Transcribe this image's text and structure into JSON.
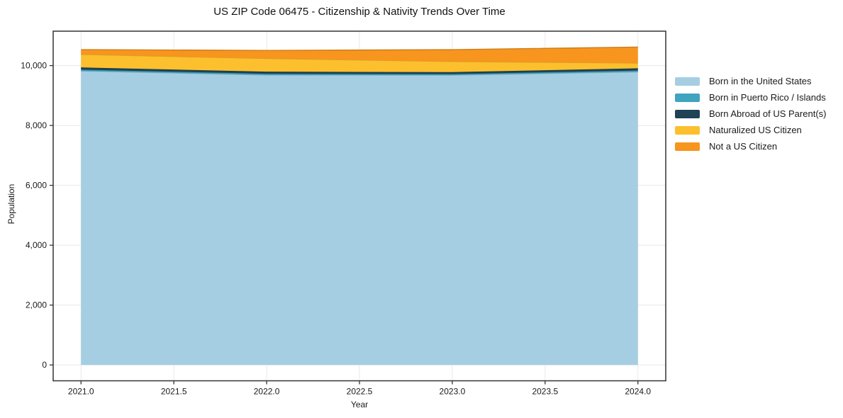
{
  "title": "US ZIP Code 06475 - Citizenship & Nativity Trends Over Time",
  "chart_data": {
    "type": "area",
    "stacked": true,
    "title": "US ZIP Code 06475 - Citizenship & Nativity Trends Over Time",
    "xlabel": "Year",
    "ylabel": "Population",
    "x": [
      2021,
      2022,
      2023,
      2024
    ],
    "series": [
      {
        "name": "Born in the United States",
        "color": "#A6CEE3",
        "values": [
          9820,
          9685,
          9680,
          9790
        ]
      },
      {
        "name": "Born in Puerto Rico / Islands",
        "color": "#3FA4C0",
        "values": [
          45,
          42,
          38,
          45
        ]
      },
      {
        "name": "Born Abroad of US Parent(s)",
        "color": "#1F4254",
        "values": [
          74,
          70,
          64,
          74
        ]
      },
      {
        "name": "Naturalized US Citizen",
        "color": "#FCC02E",
        "values": [
          435,
          440,
          355,
          175
        ]
      },
      {
        "name": "Not a US Citizen",
        "color": "#F7951E",
        "values": [
          160,
          270,
          395,
          535
        ]
      }
    ],
    "xlim": [
      2020.85,
      2024.15
    ],
    "ylim": [
      -530,
      11150
    ],
    "xticks": [
      {
        "v": 2021.0,
        "label": "2021.0"
      },
      {
        "v": 2021.5,
        "label": "2021.5"
      },
      {
        "v": 2022.0,
        "label": "2022.0"
      },
      {
        "v": 2022.5,
        "label": "2022.5"
      },
      {
        "v": 2023.0,
        "label": "2023.0"
      },
      {
        "v": 2023.5,
        "label": "2023.5"
      },
      {
        "v": 2024.0,
        "label": "2024.0"
      }
    ],
    "yticks": [
      {
        "v": 0,
        "label": "0"
      },
      {
        "v": 2000,
        "label": "2,000"
      },
      {
        "v": 4000,
        "label": "4,000"
      },
      {
        "v": 6000,
        "label": "6,000"
      },
      {
        "v": 8000,
        "label": "8,000"
      },
      {
        "v": 10000,
        "label": "10,000"
      }
    ],
    "grid": true,
    "legend_position": "right",
    "colors": {
      "grid": "#e8e8e8",
      "spine": "#333333",
      "text": "#191919",
      "background": "#ffffff"
    }
  }
}
